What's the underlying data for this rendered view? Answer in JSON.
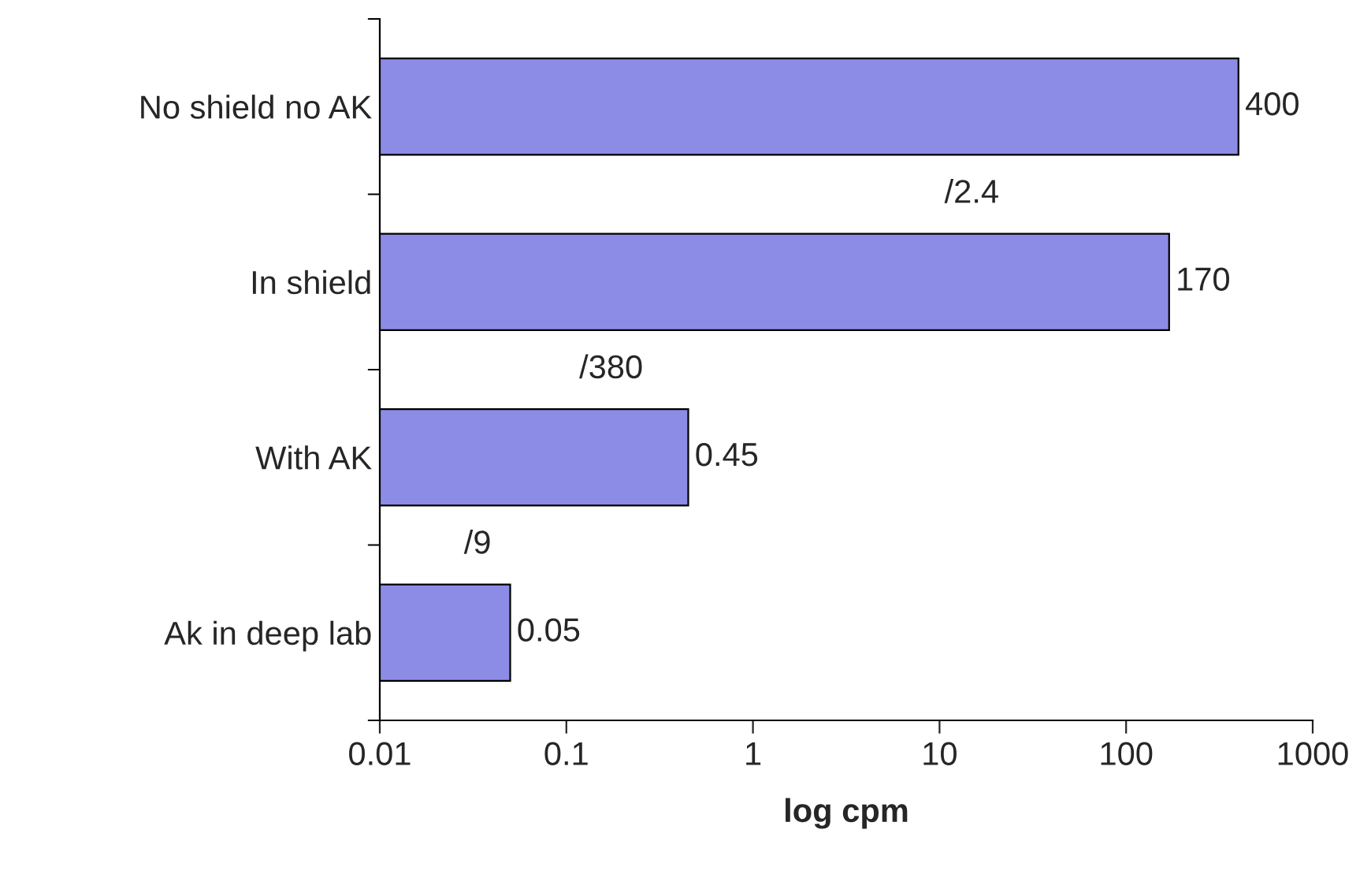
{
  "chart_data": {
    "type": "bar",
    "orientation": "horizontal",
    "log": "x",
    "categories": [
      "No shield no AK",
      "In shield",
      "With AK",
      "Ak in deep lab"
    ],
    "values": [
      400,
      170,
      0.45,
      0.05
    ],
    "color": "#8c8ce6",
    "xlim": [
      0.01,
      1000
    ],
    "xticks": [
      0.01,
      0.1,
      1,
      10,
      100,
      1000
    ],
    "xlabel": "log cpm",
    "data_labels": true,
    "grid": false,
    "legend": false,
    "annotations": [
      "/2.4",
      "/380",
      "/9"
    ]
  }
}
